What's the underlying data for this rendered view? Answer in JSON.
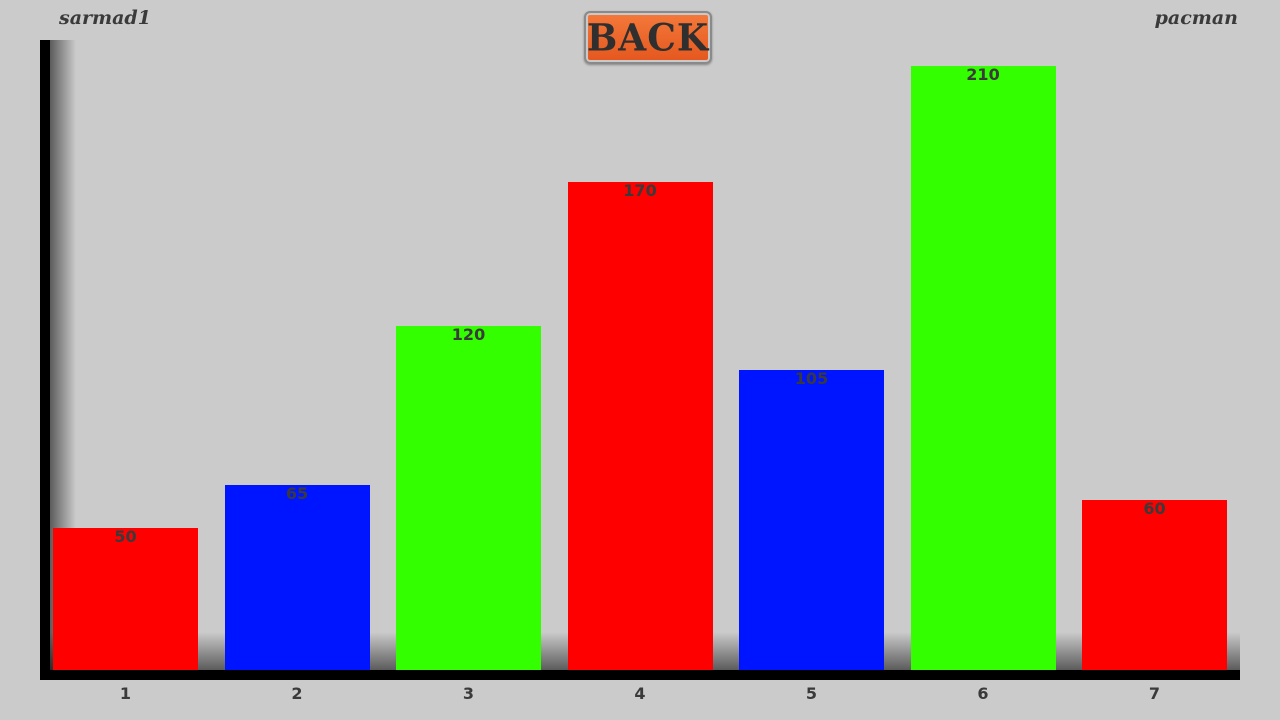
{
  "header": {
    "left_user": "sarmad1",
    "right_user": "pacman",
    "back_label": "BACK"
  },
  "colors": {
    "background": "#cbcbcb",
    "red": "#ff0000",
    "blue": "#0015ff",
    "green": "#33ff00",
    "back_button": "#ea5f25"
  },
  "chart_data": {
    "type": "bar",
    "categories": [
      "1",
      "2",
      "3",
      "4",
      "5",
      "6",
      "7"
    ],
    "values": [
      50,
      65,
      120,
      170,
      105,
      210,
      60
    ],
    "bar_colors": [
      "red",
      "blue",
      "green",
      "red",
      "blue",
      "green",
      "red"
    ],
    "ylim": [
      0,
      210
    ],
    "grid": false,
    "data_labels": true
  }
}
